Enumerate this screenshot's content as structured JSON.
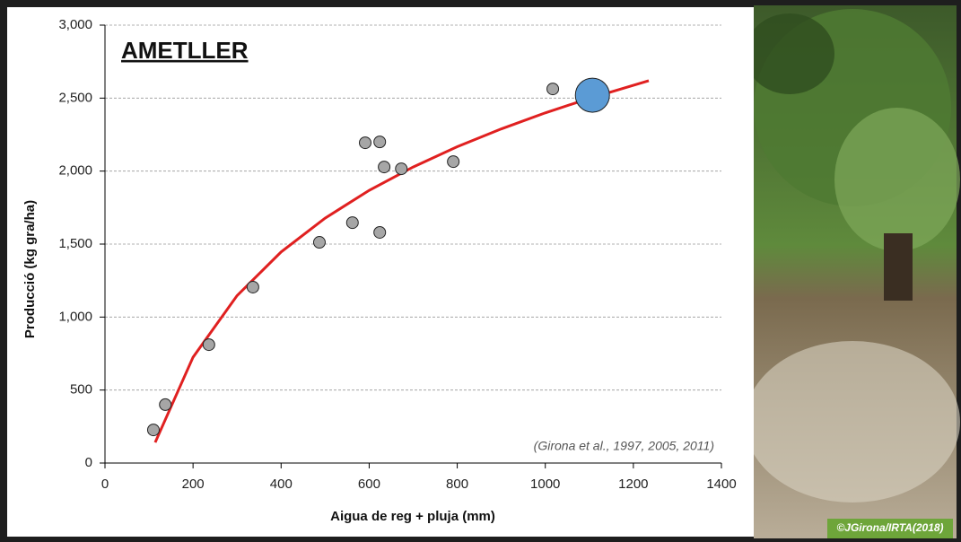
{
  "chart_data": {
    "type": "scatter",
    "title": "AMETLLER",
    "xlabel": "Aigua de reg + pluja (mm)",
    "ylabel": "Producció  (kg gra/ha)",
    "annotation": "(Girona et al., 1997, 2005, 2011)",
    "photo_credit": "©JGirona/IRTA(2018)",
    "xlim": [
      0,
      1400
    ],
    "xticks": [
      0,
      200,
      400,
      600,
      800,
      1000,
      1200,
      1400
    ],
    "ylim": [
      0,
      3000
    ],
    "yticks": [
      0,
      500,
      {
        "value": 1000,
        "label": "1,000"
      },
      {
        "value": 1500,
        "label": "1,500"
      },
      {
        "value": 2000,
        "label": "2,000"
      },
      {
        "value": 2500,
        "label": "2,500"
      },
      {
        "value": 3000,
        "label": "3,000"
      }
    ],
    "grid": true,
    "series": [
      {
        "type": "scatter",
        "color": "#a6a6a6",
        "x": [
          110,
          137,
          236,
          336,
          487,
          562,
          591,
          624,
          624,
          634,
          673,
          791,
          1017
        ],
        "values": [
          227,
          400,
          811,
          1205,
          1512,
          1647,
          2194,
          2200,
          1580,
          2028,
          2016,
          2065,
          2563
        ]
      },
      {
        "type": "scatter",
        "color": "#5b9bd5",
        "x": [
          1107
        ],
        "values": [
          2520
        ]
      },
      {
        "type": "line",
        "color": "#e02020",
        "x": [
          114,
          200,
          300,
          400,
          500,
          600,
          700,
          800,
          900,
          1000,
          1100,
          1235
        ],
        "values": [
          141,
          725,
          1147,
          1446,
          1678,
          1868,
          2028,
          2167,
          2289,
          2399,
          2498,
          2619
        ]
      }
    ]
  }
}
